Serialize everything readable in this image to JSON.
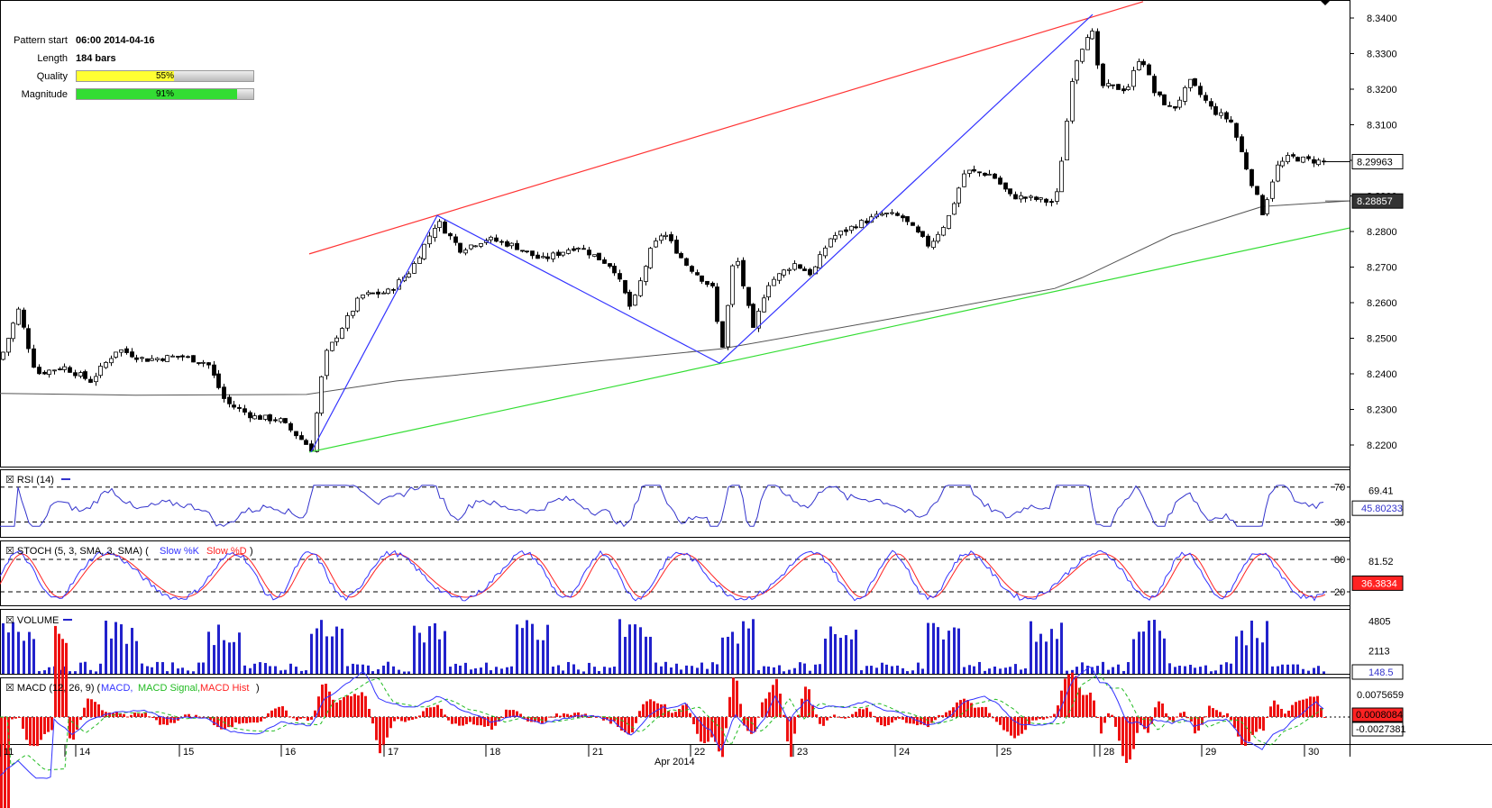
{
  "info": {
    "pattern_start_label": "Pattern start",
    "pattern_start_value": "06:00 2014-04-16",
    "length_label": "Length",
    "length_value": "184 bars",
    "quality_label": "Quality",
    "quality_text": "55%",
    "quality_value": 0.55,
    "quality_color": "#ffff33",
    "magnitude_label": "Magnitude",
    "magnitude_text": "91%",
    "magnitude_value": 0.91,
    "magnitude_color": "#33dd33"
  },
  "chart_data": [
    {
      "type": "candlestick",
      "price_axis": {
        "ticks": [
          "8.3400",
          "8.3300",
          "8.3200",
          "8.3100",
          "8.3000",
          "8.2900",
          "8.2800",
          "8.2700",
          "8.2600",
          "8.2500",
          "8.2400",
          "8.2300",
          "8.2200"
        ],
        "ylim": [
          8.218,
          8.344
        ]
      },
      "last_price": "8.29963",
      "ma_value": "8.28857",
      "pattern": {
        "resistance_line": {
          "from": {
            "date": "2014-04-16",
            "price": 8.2737
          },
          "to": {
            "date": "2014-04-28",
            "price": 8.3446
          },
          "color": "#ff3333"
        },
        "support_line": {
          "from": {
            "date": "2014-04-16",
            "price": 8.218
          },
          "to": {
            "date": "2014-04-30",
            "price": 8.281
          },
          "color": "#33dd33"
        },
        "zigzag": [
          8.218,
          8.2845,
          8.243,
          8.341
        ],
        "zigzag_color": "#3333ff"
      },
      "x_axis": {
        "labels": [
          "11",
          "14",
          "15",
          "16",
          "17",
          "18",
          "21",
          "22",
          "23",
          "24",
          "25",
          "28",
          "29",
          "30"
        ],
        "month_label": "Apr 2014"
      }
    },
    {
      "type": "line",
      "name": "RSI (14)",
      "levels": [
        "70",
        "30"
      ],
      "right_labels": [
        "69.41",
        "45.80233"
      ],
      "current": "45.80233",
      "color": "#3333cc"
    },
    {
      "type": "line",
      "name": "STOCH (5, 3, SMA, 3, SMA)",
      "legend": [
        "Slow %K",
        "Slow %D"
      ],
      "legend_colors": [
        "#3333ff",
        "#ff2222"
      ],
      "levels": [
        "80",
        "20"
      ],
      "right_labels": [
        "81.52"
      ],
      "current": "36.3834"
    },
    {
      "type": "bar",
      "name": "VOLUME",
      "right_labels": [
        "4805",
        "2113"
      ],
      "current": "148.5",
      "color": "#2222cc"
    },
    {
      "type": "line",
      "name": "MACD (12, 26, 9)",
      "legend": [
        "MACD",
        "MACD Signal",
        "MACD Hist"
      ],
      "legend_colors": [
        "#3333ff",
        "#22bb22",
        "#ff2222"
      ],
      "right_labels": [
        "0.0075659"
      ],
      "current_hist": "0.0008084",
      "current_macd": "-0.0027381"
    }
  ]
}
